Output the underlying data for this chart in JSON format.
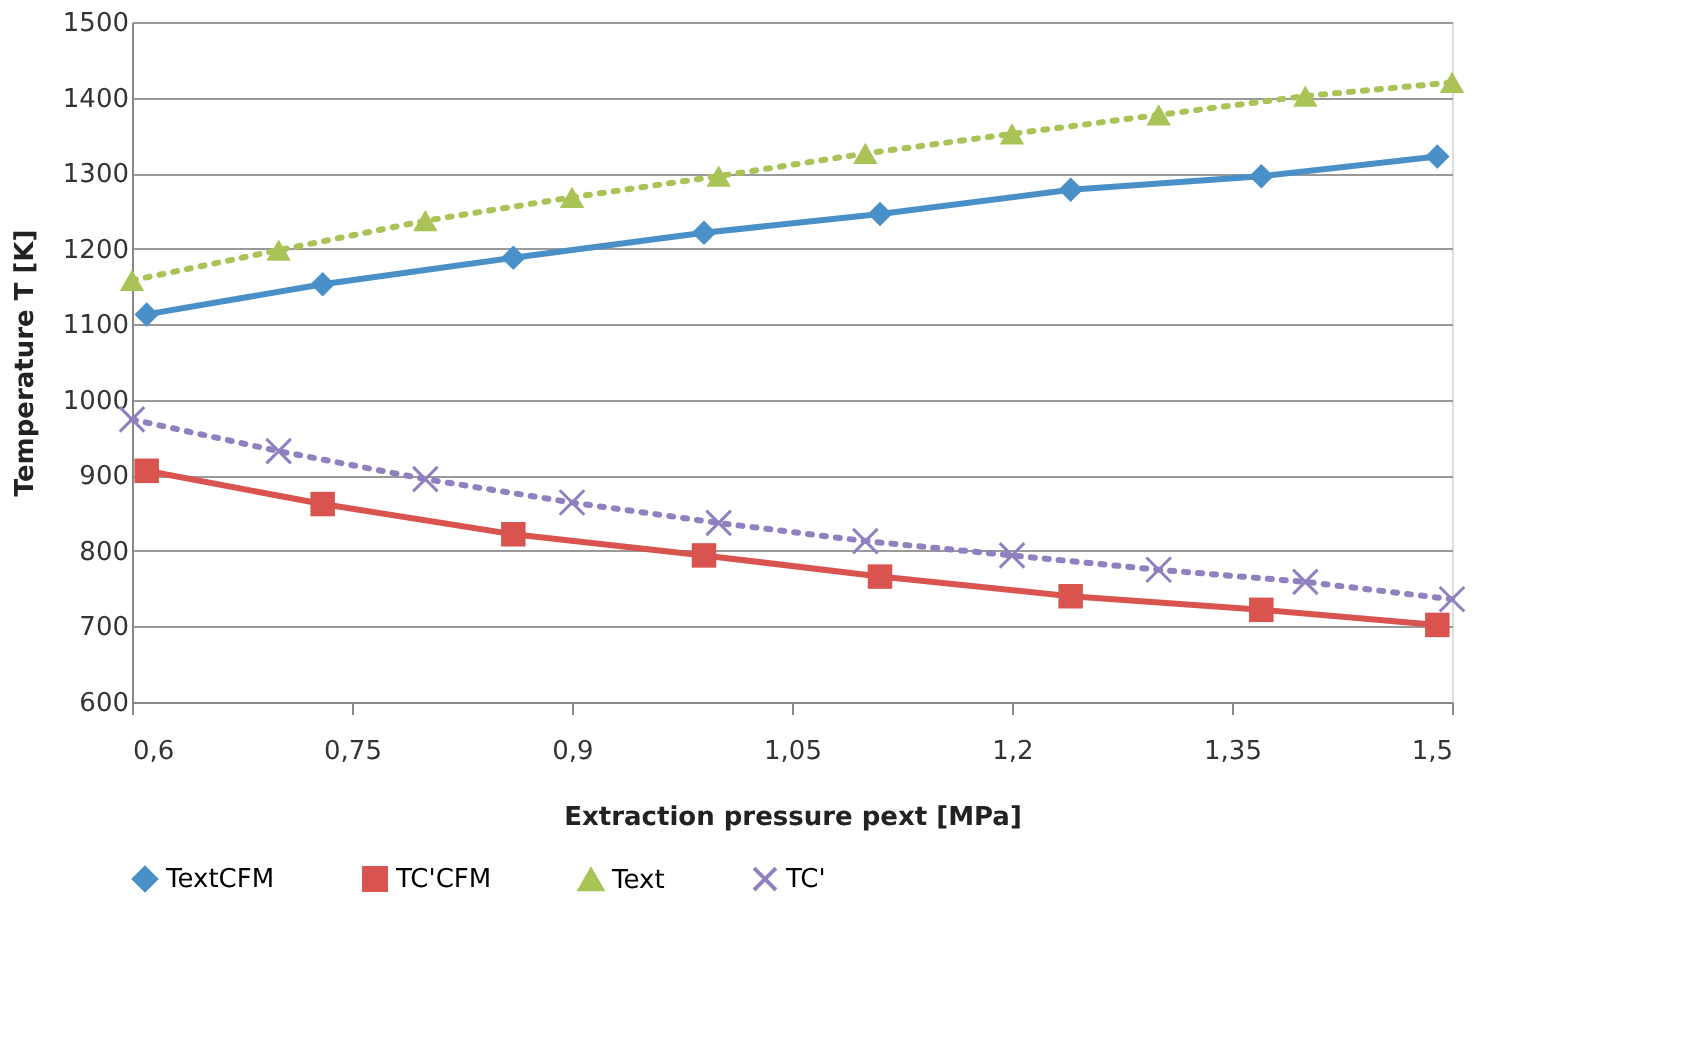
{
  "chart_data": {
    "type": "line",
    "xlabel": "Extraction pressure pext [MPa]",
    "ylabel": "Temperature T [K]",
    "xlim": [
      0.6,
      1.5
    ],
    "ylim": [
      600,
      1500
    ],
    "xticks": [
      {
        "value": 0.6,
        "label": "0,6"
      },
      {
        "value": 0.75,
        "label": "0,75"
      },
      {
        "value": 0.9,
        "label": "0,9"
      },
      {
        "value": 1.05,
        "label": "1,05"
      },
      {
        "value": 1.2,
        "label": "1,2"
      },
      {
        "value": 1.35,
        "label": "1,35"
      },
      {
        "value": 1.5,
        "label": "1,5"
      }
    ],
    "yticks": [
      600,
      700,
      800,
      900,
      1000,
      1100,
      1200,
      1300,
      1400,
      1500
    ],
    "grid": "y",
    "legend": "bottom",
    "series": [
      {
        "name": "TextCFM",
        "color": "#4a90c8",
        "marker": "diamond",
        "line_style": "solid",
        "x": [
          0.61,
          0.73,
          0.86,
          0.99,
          1.11,
          1.24,
          1.37,
          1.49
        ],
        "values": [
          1113,
          1153,
          1188,
          1221,
          1246,
          1278,
          1296,
          1322
        ]
      },
      {
        "name": "TC'CFM",
        "color": "#d9534f",
        "marker": "square",
        "line_style": "solid",
        "x": [
          0.61,
          0.73,
          0.86,
          0.99,
          1.11,
          1.24,
          1.37,
          1.49
        ],
        "values": [
          906,
          862,
          822,
          794,
          766,
          740,
          722,
          702
        ]
      },
      {
        "name": "Text",
        "color": "#a9c356",
        "marker": "triangle",
        "line_style": "dotted",
        "x": [
          0.6,
          0.7,
          0.8,
          0.9,
          1.0,
          1.1,
          1.2,
          1.3,
          1.4,
          1.5
        ],
        "values": [
          1158,
          1198,
          1237,
          1268,
          1296,
          1326,
          1352,
          1377,
          1402,
          1420
        ]
      },
      {
        "name": "TC'",
        "color": "#9080c0",
        "marker": "cross",
        "line_style": "dotted",
        "x": [
          0.6,
          0.7,
          0.8,
          0.9,
          1.0,
          1.1,
          1.2,
          1.3,
          1.4,
          1.5
        ],
        "values": [
          974,
          932,
          895,
          864,
          837,
          813,
          794,
          775,
          759,
          736
        ]
      }
    ]
  }
}
